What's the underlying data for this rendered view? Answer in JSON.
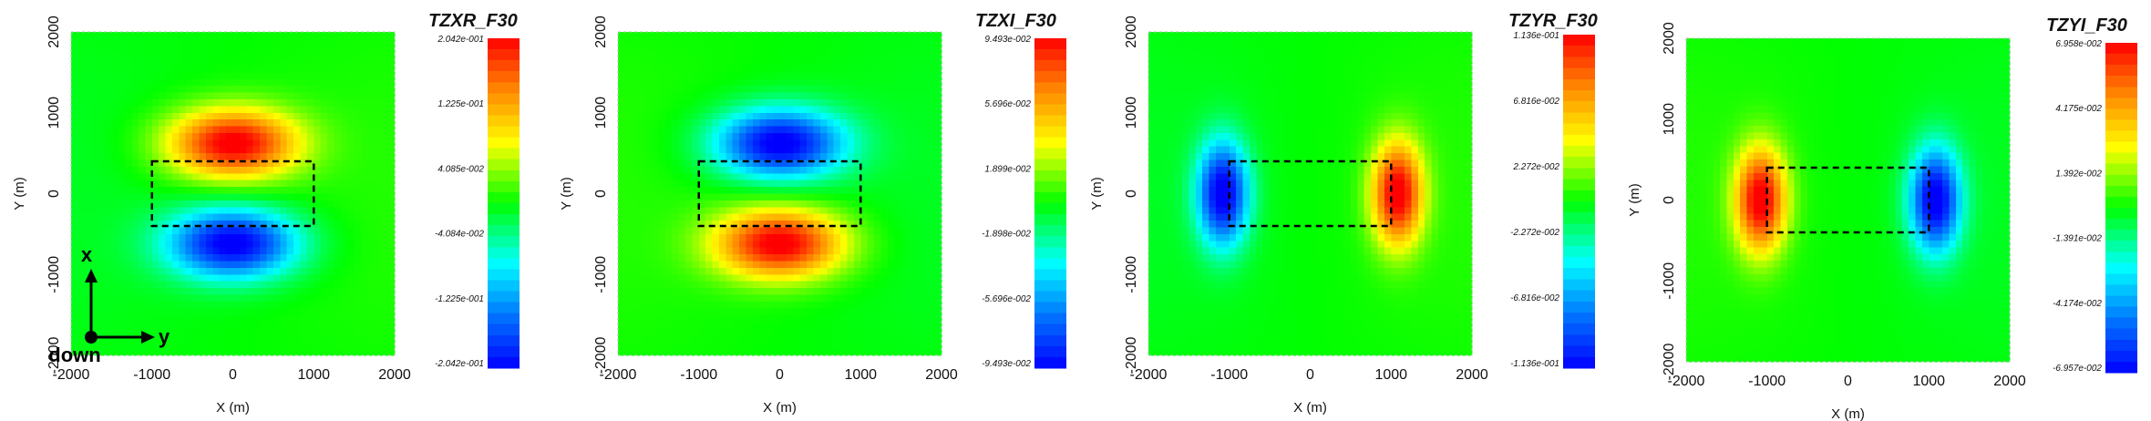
{
  "chart_data": [
    {
      "type": "heatmap",
      "title": "TZXR_F30",
      "xlabel": "X (m)",
      "ylabel": "Y (m)",
      "xlim": [
        -2000,
        2000
      ],
      "ylim": [
        -2000,
        2000
      ],
      "xticks": [
        "-2000",
        "-1000",
        "0",
        "1000",
        "2000"
      ],
      "yticks": [
        "2000",
        "1000",
        "0",
        "-1000",
        "-2000"
      ],
      "colorbar": {
        "min": -0.2042,
        "max": 0.2042,
        "labels": [
          "2.042e-001",
          "1.225e-001",
          "4.085e-002",
          "-4.084e-002",
          "-1.225e-001",
          "-2.042e-001"
        ]
      },
      "pattern": "dipole-vertical",
      "sign": 1,
      "target_box": {
        "x": [
          -1000,
          1000
        ],
        "y": [
          -400,
          400
        ]
      },
      "orientation": {
        "x_arrow": "x",
        "y_arrow": "y",
        "z_dot": "down"
      }
    },
    {
      "type": "heatmap",
      "title": "TZXI_F30",
      "xlabel": "X (m)",
      "ylabel": "Y (m)",
      "xlim": [
        -2000,
        2000
      ],
      "ylim": [
        -2000,
        2000
      ],
      "xticks": [
        "-2000",
        "-1000",
        "0",
        "1000",
        "2000"
      ],
      "yticks": [
        "2000",
        "1000",
        "0",
        "-1000",
        "-2000"
      ],
      "colorbar": {
        "min": -0.09493,
        "max": 0.09493,
        "labels": [
          "9.493e-002",
          "5.696e-002",
          "1.899e-002",
          "-1.898e-002",
          "-5.696e-002",
          "-9.493e-002"
        ]
      },
      "pattern": "dipole-vertical",
      "sign": -1,
      "target_box": {
        "x": [
          -1000,
          1000
        ],
        "y": [
          -400,
          400
        ]
      }
    },
    {
      "type": "heatmap",
      "title": "TZYR_F30",
      "xlabel": "X (m)",
      "ylabel": "Y (m)",
      "xlim": [
        -2000,
        2000
      ],
      "ylim": [
        -2000,
        2000
      ],
      "xticks": [
        "-2000",
        "-1000",
        "0",
        "1000",
        "2000"
      ],
      "yticks": [
        "2000",
        "1000",
        "0",
        "-1000",
        "-2000"
      ],
      "colorbar": {
        "min": -0.1136,
        "max": 0.1136,
        "labels": [
          "1.136e-001",
          "6.816e-002",
          "2.272e-002",
          "-2.272e-002",
          "-6.816e-002",
          "-1.136e-001"
        ]
      },
      "pattern": "dipole-horizontal",
      "sign": 1,
      "target_box": {
        "x": [
          -1000,
          1000
        ],
        "y": [
          -400,
          400
        ]
      }
    },
    {
      "type": "heatmap",
      "title": "TZYI_F30",
      "xlabel": "X (m)",
      "ylabel": "Y (m)",
      "xlim": [
        -2000,
        2000
      ],
      "ylim": [
        -2000,
        2000
      ],
      "xticks": [
        "-2000",
        "-1000",
        "0",
        "1000",
        "2000"
      ],
      "yticks": [
        "2000",
        "1000",
        "0",
        "-1000",
        "-2000"
      ],
      "colorbar": {
        "min": -0.06957,
        "max": 0.06958,
        "labels": [
          "6.958e-002",
          "4.175e-002",
          "1.392e-002",
          "-1.391e-002",
          "-4.174e-002",
          "-6.957e-002"
        ]
      },
      "pattern": "dipole-horizontal",
      "sign": -1,
      "target_box": {
        "x": [
          -1000,
          1000
        ],
        "y": [
          -400,
          400
        ]
      }
    }
  ]
}
